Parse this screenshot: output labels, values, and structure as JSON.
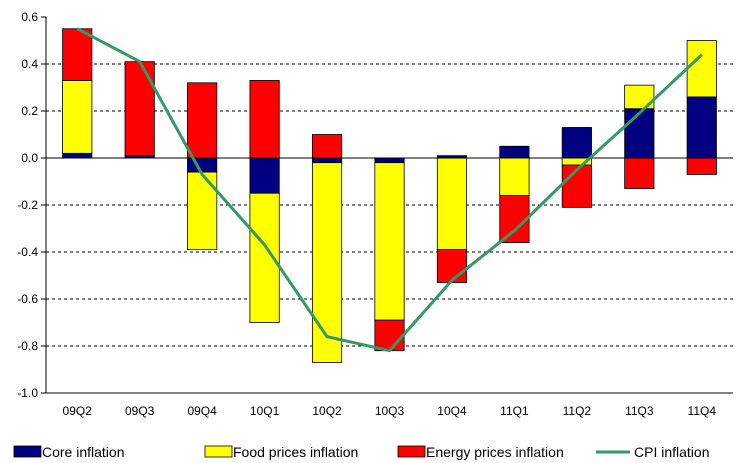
{
  "chart_data": {
    "type": "bar",
    "stacked": true,
    "categories": [
      "09Q2",
      "09Q3",
      "09Q4",
      "10Q1",
      "10Q2",
      "10Q3",
      "10Q4",
      "11Q1",
      "11Q2",
      "11Q3",
      "11Q4"
    ],
    "series": [
      {
        "name": "Core inflation",
        "type": "bar",
        "color": "#000080",
        "values": [
          0.02,
          0.01,
          -0.06,
          -0.15,
          -0.02,
          -0.02,
          0.01,
          0.05,
          0.13,
          0.21,
          0.26
        ]
      },
      {
        "name": "Food prices inflation",
        "type": "bar",
        "color": "#ffff00",
        "values": [
          0.31,
          0.0,
          -0.33,
          -0.55,
          -0.85,
          -0.67,
          -0.39,
          -0.16,
          -0.03,
          0.1,
          0.24
        ]
      },
      {
        "name": "Energy prices inflation",
        "type": "bar",
        "color": "#ff0000",
        "values": [
          0.22,
          0.4,
          0.32,
          0.33,
          0.1,
          -0.13,
          -0.14,
          -0.2,
          -0.18,
          -0.13,
          -0.07
        ]
      },
      {
        "name": "CPI inflation",
        "type": "line",
        "color": "#339966",
        "values": [
          0.55,
          0.41,
          -0.07,
          -0.37,
          -0.76,
          -0.82,
          -0.52,
          -0.31,
          -0.05,
          0.19,
          0.44
        ]
      }
    ],
    "ylim": [
      -1.0,
      0.6
    ],
    "yticks": [
      "0.6",
      "0.4",
      "0.2",
      "0.0",
      "-0.2",
      "-0.4",
      "-0.6",
      "-0.8",
      "-1.0"
    ],
    "grid": "horizontal-dashed",
    "legend_position": "bottom",
    "title": "",
    "xlabel": "",
    "ylabel": ""
  }
}
